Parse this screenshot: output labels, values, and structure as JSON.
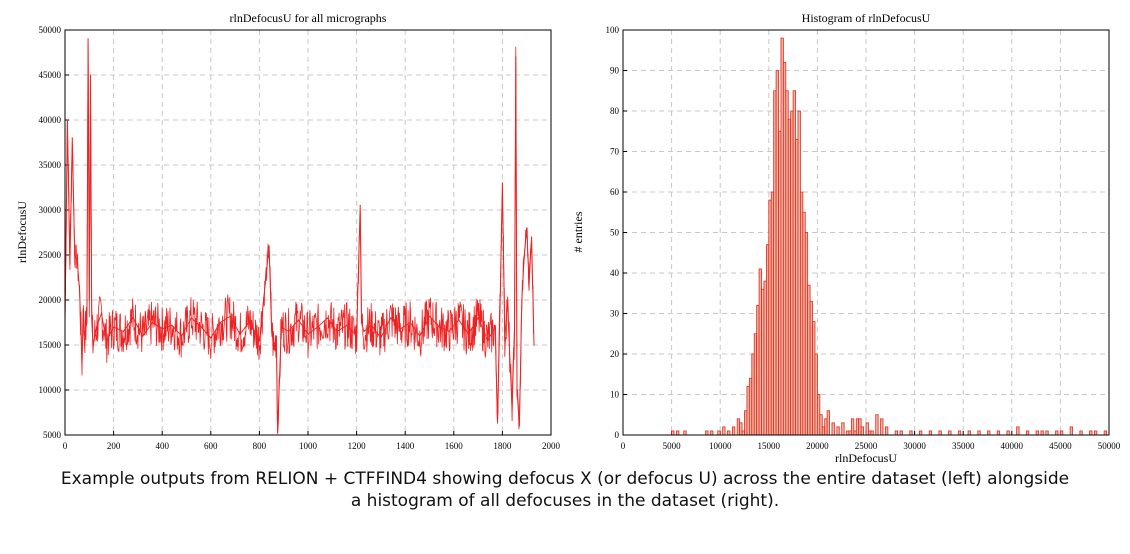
{
  "colors": {
    "series": "#ee2222",
    "hist_edge": "#dd2a1a",
    "hist_fill": "#f6b3a4",
    "grid": "#c8c8c8",
    "axis": "#000000"
  },
  "chart_data": [
    {
      "type": "line",
      "title": "rlnDefocusU for all micrographs",
      "xlabel": "",
      "ylabel": "rlnDefocusU",
      "xlim": [
        0,
        2000
      ],
      "ylim": [
        5000,
        50000
      ],
      "xticks": [
        0,
        200,
        400,
        600,
        800,
        1000,
        1200,
        1400,
        1600,
        1800,
        2000
      ],
      "yticks": [
        5000,
        10000,
        15000,
        20000,
        25000,
        30000,
        35000,
        40000,
        45000,
        50000
      ],
      "grid": true,
      "series": [
        {
          "name": "rlnDefocusU",
          "x": [
            0,
            10,
            20,
            30,
            40,
            50,
            60,
            70,
            75,
            80,
            90,
            95,
            100,
            105,
            110,
            115,
            130,
            150,
            170,
            200,
            240,
            280,
            320,
            360,
            400,
            440,
            480,
            520,
            560,
            600,
            640,
            680,
            720,
            760,
            800,
            840,
            850,
            860,
            870,
            875,
            890,
            920,
            960,
            1000,
            1040,
            1080,
            1120,
            1160,
            1200,
            1215,
            1220,
            1230,
            1260,
            1300,
            1340,
            1380,
            1420,
            1460,
            1500,
            1540,
            1580,
            1620,
            1660,
            1700,
            1740,
            1770,
            1780,
            1790,
            1800,
            1810,
            1820,
            1840,
            1850,
            1855,
            1860,
            1870,
            1880,
            1890,
            1900,
            1910,
            1920,
            1930
          ],
          "values": [
            17500,
            40000,
            24000,
            38000,
            25000,
            24500,
            21000,
            13000,
            19000,
            16000,
            17500,
            49000,
            20000,
            45000,
            18000,
            15000,
            17000,
            18500,
            15500,
            17000,
            16500,
            18000,
            16000,
            17500,
            16800,
            17200,
            16000,
            18000,
            17000,
            15800,
            17500,
            18200,
            16200,
            17600,
            15500,
            26000,
            17000,
            14500,
            16000,
            5200,
            17000,
            16500,
            17800,
            16200,
            17000,
            18000,
            16500,
            17200,
            16000,
            30500,
            17500,
            16500,
            17200,
            15800,
            18000,
            16800,
            17500,
            16000,
            18200,
            17000,
            16500,
            17800,
            16200,
            18000,
            15500,
            17000,
            6500,
            19000,
            33000,
            15500,
            20000,
            8000,
            17000,
            47000,
            10000,
            6000,
            20000,
            25000,
            28000,
            22000,
            27000,
            15000
          ]
        }
      ]
    },
    {
      "type": "bar",
      "title": "Histogram of rlnDefocusU",
      "xlabel": "rlnDefocusU",
      "ylabel": "# entries",
      "xlim": [
        0,
        50000
      ],
      "ylim": [
        0,
        100
      ],
      "xticks": [
        0,
        5000,
        10000,
        15000,
        20000,
        25000,
        30000,
        35000,
        40000,
        45000,
        50000
      ],
      "yticks": [
        0,
        10,
        20,
        30,
        40,
        50,
        60,
        70,
        80,
        90,
        100
      ],
      "grid": true,
      "bin_width": 250,
      "bin_starts": [
        5000,
        5500,
        6250,
        8500,
        9000,
        9750,
        10250,
        10750,
        11250,
        11750,
        12000,
        12250,
        12500,
        12750,
        13000,
        13250,
        13500,
        13750,
        14000,
        14250,
        14500,
        14750,
        15000,
        15250,
        15500,
        15750,
        16000,
        16250,
        16500,
        16750,
        17000,
        17250,
        17500,
        17750,
        18000,
        18250,
        18500,
        18750,
        19000,
        19250,
        19500,
        19750,
        20000,
        20250,
        20500,
        20750,
        21000,
        21500,
        22000,
        22500,
        23000,
        23250,
        23500,
        23750,
        24000,
        24250,
        24500,
        25000,
        25250,
        25500,
        26000,
        26500,
        27000,
        28000,
        28500,
        29500,
        30500,
        31500,
        32500,
        33500,
        34500,
        35500,
        36500,
        37500,
        38500,
        39500,
        40500,
        41500,
        42500,
        43000,
        43500,
        44500,
        45000,
        46000,
        47000,
        48000,
        48500,
        49500
      ],
      "counts": [
        1,
        1,
        1,
        1,
        1,
        1,
        2,
        1,
        2,
        4,
        3,
        1,
        6,
        12,
        14,
        20,
        25,
        32,
        41,
        36,
        38,
        47,
        58,
        60,
        85,
        90,
        75,
        98,
        92,
        85,
        78,
        80,
        85,
        73,
        80,
        60,
        55,
        50,
        37,
        33,
        28,
        20,
        10,
        5,
        2,
        4,
        6,
        3,
        2,
        3,
        1,
        1,
        4,
        1,
        4,
        4,
        2,
        3,
        1,
        1,
        5,
        4,
        2,
        1,
        1,
        1,
        1,
        1,
        1,
        1,
        1,
        1,
        1,
        1,
        1,
        1,
        2,
        1,
        1,
        1,
        1,
        1,
        1,
        2,
        1,
        1,
        1,
        1
      ]
    }
  ],
  "caption": {
    "line1": "Example outputs from RELION + CTFFIND4 showing defocus X (or defocus U) across the entire dataset (left) alongside",
    "line2": "a histogram of all defocuses in the dataset (right)."
  }
}
